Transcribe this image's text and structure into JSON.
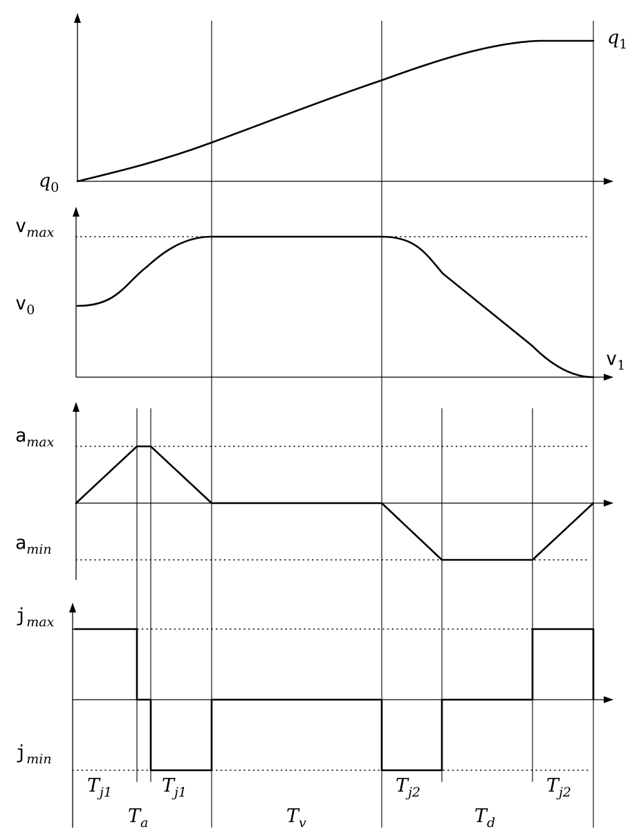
{
  "panels": {
    "position": {
      "start_label_base": "q",
      "start_label_sub": "0",
      "end_label_base": "q",
      "end_label_sub": "1"
    },
    "velocity": {
      "max_label_base": "v",
      "max_label_sub": "max",
      "start_label_base": "v",
      "start_label_sub": "0",
      "end_label_base": "v",
      "end_label_sub": "1"
    },
    "acceleration": {
      "max_label_base": "a",
      "max_label_sub": "max",
      "min_label_base": "a",
      "min_label_sub": "min"
    },
    "jerk": {
      "max_label_base": "j",
      "max_label_sub": "max",
      "min_label_base": "j",
      "min_label_sub": "min"
    }
  },
  "intervals": {
    "tj1_a": {
      "base": "T",
      "sub": "j1"
    },
    "tj1_b": {
      "base": "T",
      "sub": "j1"
    },
    "ta": {
      "base": "T",
      "sub": "a"
    },
    "tv": {
      "base": "T",
      "sub": "v"
    },
    "tj2_a": {
      "base": "T",
      "sub": "j2"
    },
    "tj2_b": {
      "base": "T",
      "sub": "j2"
    },
    "td": {
      "base": "T",
      "sub": "d"
    }
  }
}
